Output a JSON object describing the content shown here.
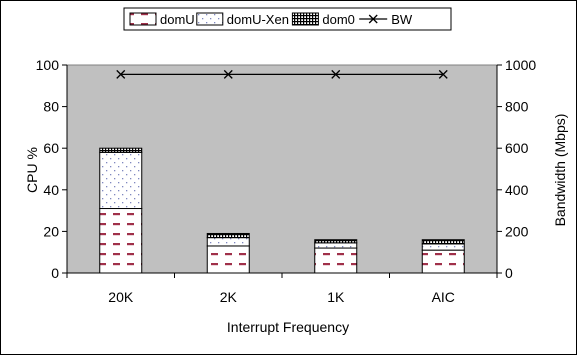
{
  "chart_data": {
    "type": "bar",
    "stacked": true,
    "categories": [
      "20K",
      "2K",
      "1K",
      "AIC"
    ],
    "series": [
      {
        "name": "domU",
        "values": [
          31,
          13,
          12,
          11
        ],
        "pattern": "dashes",
        "color": "#a0304a"
      },
      {
        "name": "domU-Xen",
        "values": [
          27,
          4,
          2.5,
          3
        ],
        "pattern": "dots",
        "color": "#9aa0c8"
      },
      {
        "name": "dom0",
        "values": [
          2,
          2,
          1.5,
          2
        ],
        "pattern": "grid",
        "color": "#000000"
      }
    ],
    "line_series": {
      "name": "BW",
      "values": [
        955,
        955,
        955,
        955
      ],
      "marker": "x",
      "axis": "right"
    },
    "xlabel": "Interrupt Frequency",
    "ylabel": "CPU %",
    "y2label": "Bandwidth (Mbps)",
    "ylim": [
      0,
      100
    ],
    "y2lim": [
      0,
      1000
    ],
    "yticks": [
      "0",
      "20",
      "40",
      "60",
      "80",
      "100"
    ],
    "y2ticks": [
      "0",
      "200",
      "400",
      "600",
      "800",
      "1000"
    ],
    "plot_background": "#c0c0c0",
    "grid": false,
    "legend_position": "top"
  }
}
